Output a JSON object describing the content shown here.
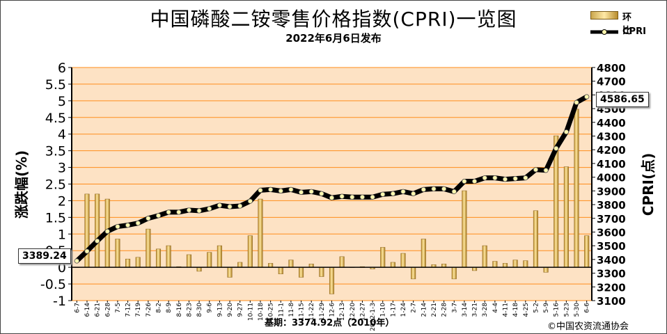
{
  "header": {
    "title": "中国磷酸二铵零售价格指数(CPRI)一览图",
    "subtitle": "2022年6月6日发布"
  },
  "legend": {
    "bar_label": "环比",
    "line_label": "CPRI"
  },
  "footer": {
    "base_note": "基期：3374.92点（2010年）",
    "copyright": "©中国农资流通协会"
  },
  "callouts": {
    "start_value": "3389.24",
    "end_value": "4586.65"
  },
  "colors": {
    "plot_bg": "#fde2c4",
    "grid": "#ff8c1a",
    "bar": "#d8a84a",
    "line": "#000000",
    "marker": "#fff8b0"
  },
  "chart_data": {
    "type": "bar",
    "xlabel": "",
    "ylabel_left": "涨跌幅(%)",
    "ylabel_right": "CPRI(点)",
    "ylim_left": [
      -1,
      6
    ],
    "ylim_right": [
      3100,
      4800
    ],
    "yticks_left": [
      "-1",
      "-0.5",
      "0",
      "0.5",
      "1",
      "1.5",
      "2",
      "2.5",
      "3",
      "3.5",
      "4",
      "4.5",
      "5",
      "5.5",
      "6"
    ],
    "yticks_right": [
      "3100",
      "3200",
      "3300",
      "3400",
      "3500",
      "3600",
      "3700",
      "3800",
      "3900",
      "4000",
      "4100",
      "4200",
      "4300",
      "4400",
      "4500",
      "4600",
      "4700",
      "4800"
    ],
    "categories": [
      "6-7",
      "6-14",
      "6-21",
      "6-28",
      "7-5",
      "7-12",
      "7-19",
      "7-26",
      "8-2",
      "8-9",
      "8-16",
      "8-23",
      "8-30",
      "9-6",
      "9-13",
      "9-20",
      "9-27",
      "10-11",
      "10-18",
      "10-25",
      "11-1",
      "11-8",
      "11-15",
      "11-22",
      "11-29",
      "12-6",
      "12-13",
      "12-20",
      "12-27",
      "2022-1-3",
      "1-10",
      "1-17",
      "1-24",
      "2-7",
      "2-14",
      "2-21",
      "2-28",
      "3-7",
      "3-14",
      "3-21",
      "3-28",
      "4-4",
      "4-11",
      "4-18",
      "4-25",
      "5-2",
      "5-9",
      "5-16",
      "5-23",
      "5-30",
      "6-6"
    ],
    "series": [
      {
        "name": "环比",
        "type": "bar",
        "axis": "left",
        "values": [
          0.0,
          2.2,
          2.2,
          2.05,
          0.85,
          0.25,
          0.3,
          1.15,
          0.55,
          0.65,
          0.02,
          0.38,
          -0.12,
          0.45,
          0.65,
          -0.3,
          0.15,
          0.95,
          2.05,
          0.12,
          -0.2,
          0.22,
          -0.3,
          0.1,
          -0.28,
          -0.8,
          0.32,
          0.0,
          0.02,
          -0.05,
          0.6,
          0.15,
          0.42,
          -0.35,
          0.85,
          0.08,
          0.1,
          -0.35,
          2.3,
          -0.1,
          0.65,
          0.18,
          0.12,
          0.22,
          0.2,
          1.7,
          -0.15,
          3.95,
          3.02,
          4.75,
          0.95
        ]
      },
      {
        "name": "CPRI",
        "type": "line",
        "axis": "right",
        "values": [
          3389.24,
          3460,
          3535,
          3605,
          3640,
          3650,
          3665,
          3700,
          3720,
          3745,
          3745,
          3760,
          3755,
          3770,
          3795,
          3785,
          3790,
          3825,
          3905,
          3910,
          3900,
          3910,
          3890,
          3895,
          3880,
          3850,
          3860,
          3855,
          3855,
          3855,
          3875,
          3880,
          3895,
          3880,
          3910,
          3915,
          3915,
          3895,
          3970,
          3970,
          3995,
          3995,
          3985,
          3990,
          3995,
          4055,
          4050,
          4210,
          4330,
          4545,
          4586.65
        ]
      }
    ]
  }
}
